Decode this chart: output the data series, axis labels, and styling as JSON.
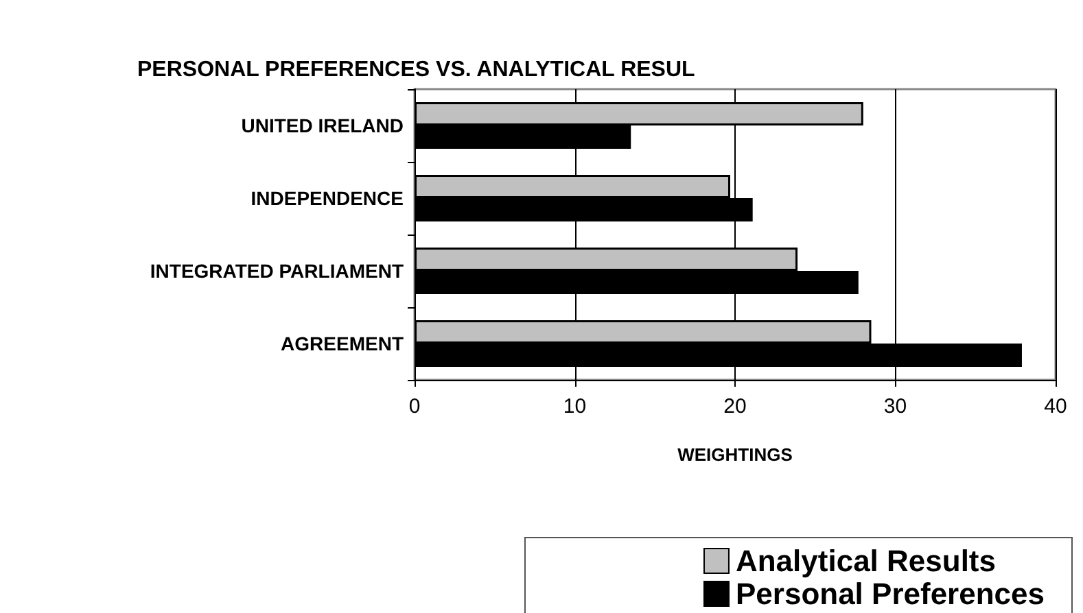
{
  "chart_data": {
    "type": "bar",
    "orientation": "horizontal",
    "title": "PERSONAL PREFERENCES VS. ANALYTICAL RESUL",
    "xlabel": "WEIGHTINGS",
    "categories": [
      "UNITED IRELAND",
      "INDEPENDENCE",
      "INTEGRATED PARLIAMENT",
      "AGREEMENT"
    ],
    "series": [
      {
        "name": "Analytical Results",
        "color": "#c0c0c0",
        "values": [
          28.0,
          19.7,
          23.9,
          28.5
        ]
      },
      {
        "name": "Personal Preferences",
        "color": "#000000",
        "values": [
          13.5,
          21.1,
          27.7,
          37.9
        ]
      }
    ],
    "xlim": [
      0,
      40
    ],
    "xticks": [
      0,
      10,
      20,
      30,
      40
    ],
    "grid": "x",
    "legend": "bottom right"
  }
}
